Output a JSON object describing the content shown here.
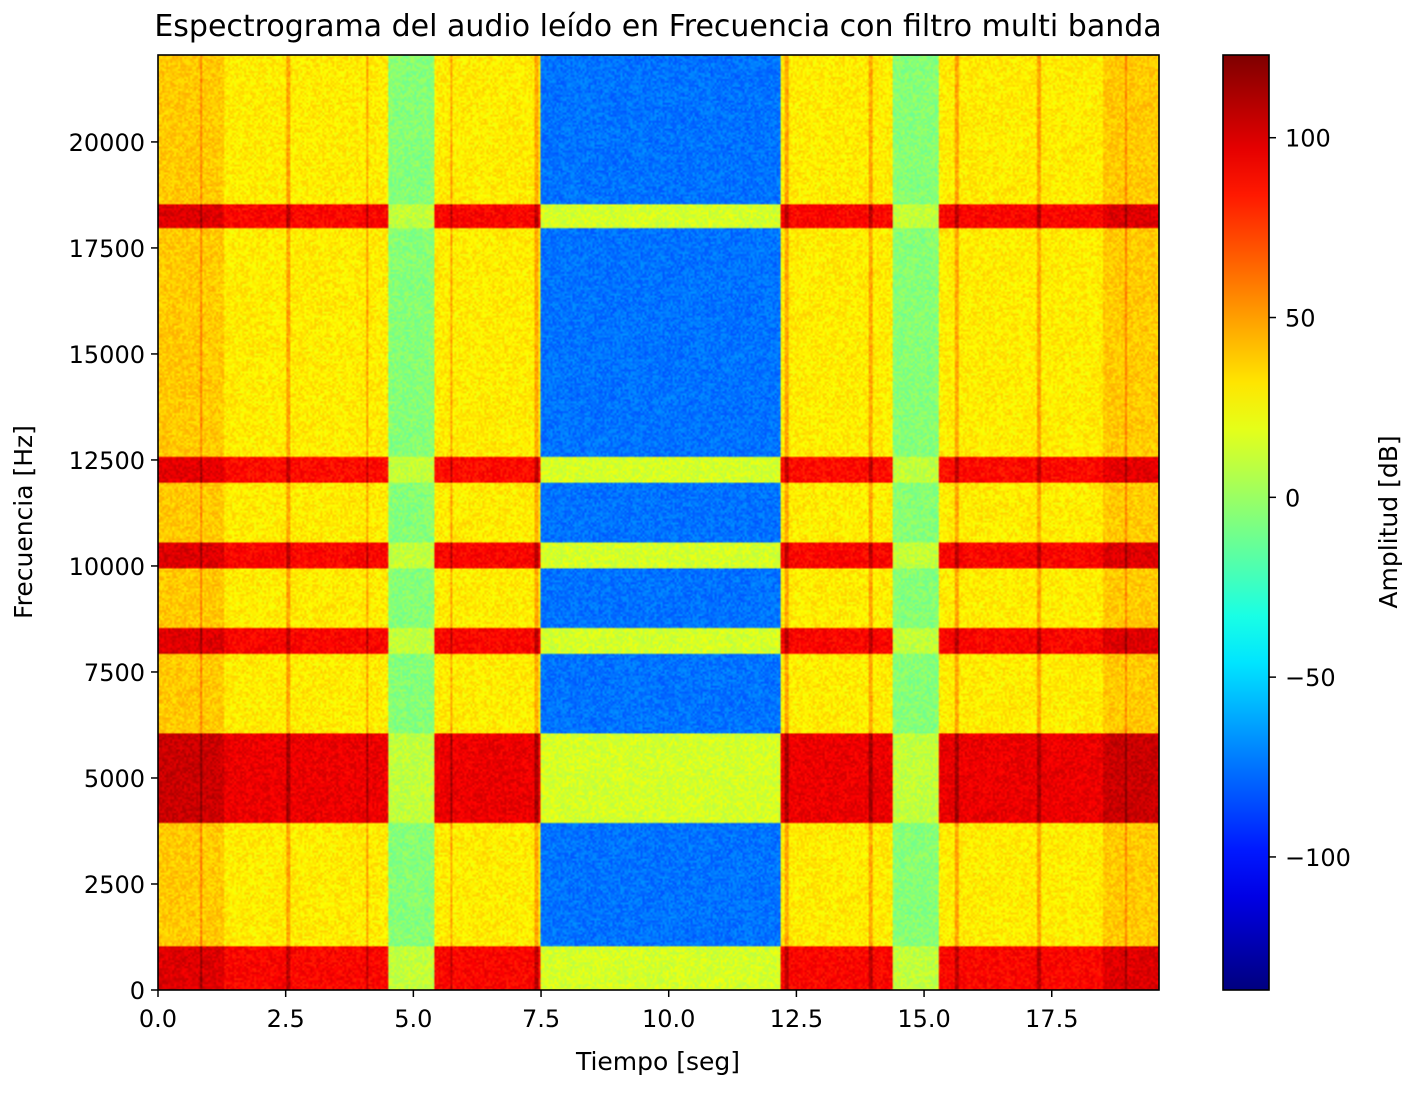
{
  "chart_data": {
    "type": "heatmap",
    "title": "Espectrograma del audio leído en Frecuencia con filtro multi banda",
    "xlabel": "Tiempo [seg]",
    "ylabel": "Frecuencia [Hz]",
    "xlim": [
      0,
      19.6
    ],
    "ylim": [
      0,
      22050
    ],
    "xticks": [
      0.0,
      2.5,
      5.0,
      7.5,
      10.0,
      12.5,
      15.0,
      17.5
    ],
    "xtick_labels": [
      "0.0",
      "2.5",
      "5.0",
      "7.5",
      "10.0",
      "12.5",
      "15.0",
      "17.5"
    ],
    "yticks": [
      0,
      2500,
      5000,
      7500,
      10000,
      12500,
      15000,
      17500,
      20000
    ],
    "ytick_labels": [
      "0",
      "2500",
      "5000",
      "7500",
      "10000",
      "12500",
      "15000",
      "17500",
      "20000"
    ],
    "colorbar": {
      "label": "Amplitud [dB]",
      "colormap": "jet",
      "range": [
        -137,
        123
      ],
      "ticks": [
        -100,
        -50,
        0,
        50,
        100
      ],
      "tick_labels": [
        "−100",
        "−50",
        "0",
        "50",
        "100"
      ]
    },
    "grid": false,
    "time_segments": [
      {
        "t0": 0.0,
        "t1": 4.5,
        "level": "loud"
      },
      {
        "t0": 4.5,
        "t1": 5.4,
        "level": "quiet"
      },
      {
        "t0": 5.4,
        "t1": 7.5,
        "level": "loud"
      },
      {
        "t0": 7.5,
        "t1": 12.2,
        "level": "silent"
      },
      {
        "t0": 12.2,
        "t1": 14.4,
        "level": "loud"
      },
      {
        "t0": 14.4,
        "t1": 15.3,
        "level": "quiet"
      },
      {
        "t0": 15.3,
        "t1": 19.6,
        "level": "loud"
      }
    ],
    "frequency_bands": [
      {
        "f0": 0,
        "f1": 1050,
        "peak_db": 90
      },
      {
        "f0": 3950,
        "f1": 6050,
        "peak_db": 95
      },
      {
        "f0": 7950,
        "f1": 8550,
        "peak_db": 90
      },
      {
        "f0": 9950,
        "f1": 10550,
        "peak_db": 90
      },
      {
        "f0": 11950,
        "f1": 12550,
        "peak_db": 88
      },
      {
        "f0": 17950,
        "f1": 18550,
        "peak_db": 90
      }
    ],
    "background_db": {
      "loud": 30,
      "quiet": -5,
      "silent": -75
    },
    "band_in_quiet_db": {
      "quiet": 10,
      "silent": 15
    },
    "hot_time_ranges": [
      {
        "t0": 0.0,
        "t1": 1.3,
        "delta_db": 15
      },
      {
        "t0": 18.5,
        "t1": 19.6,
        "delta_db": 15
      }
    ],
    "transient_times": [
      0.85,
      2.55,
      4.1,
      5.75,
      7.4,
      12.3,
      13.95,
      15.65,
      17.25,
      18.95
    ]
  }
}
